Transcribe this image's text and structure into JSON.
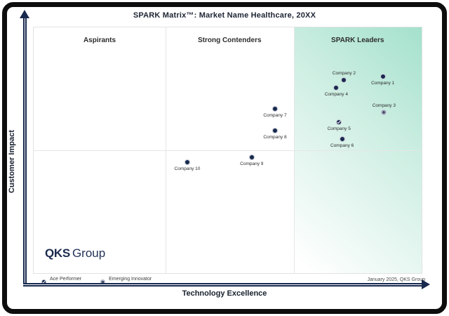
{
  "title": "SPARK Matrix™: Market Name Healthcare, 20XX",
  "x_axis_label": "Technology Excellence",
  "y_axis_label": "Customer Impact",
  "quadrant_labels": [
    "Aspirants",
    "Strong Contenders",
    "SPARK Leaders"
  ],
  "legend": {
    "ace_performer": "Ace Performer",
    "emerging_innovator": "Emerging Innovator"
  },
  "footer_note": "January 2025, QKS Group",
  "logo": {
    "bold_part": "QKS",
    "light_part": "Group"
  },
  "colors": {
    "navy": "#18294e",
    "marker_halo": "#ccd1d8",
    "leaders_gradient_start": "#a4e1cd",
    "grid_line": "#e6e6e6",
    "frame": "#0d0d0d"
  },
  "chart_data": {
    "type": "scatter",
    "title": "SPARK Matrix™: Market Name Healthcare, 20XX",
    "xlabel": "Technology Excellence",
    "ylabel": "Customer Impact",
    "xlim": [
      0,
      100
    ],
    "ylim": [
      0,
      100
    ],
    "axis_ticks_visible": false,
    "grid": "quadrant",
    "quadrant_dividers_x_pct": [
      34,
      67
    ],
    "midline_y_pct": 50,
    "legend_position": "bottom-left",
    "points": [
      {
        "label": "Company 1",
        "x": 90,
        "y": 80,
        "marker": "standard",
        "label_position": "below"
      },
      {
        "label": "Company 2",
        "x": 80,
        "y": 78.7,
        "marker": "standard",
        "label_position": "above"
      },
      {
        "label": "Company 3",
        "x": 90.3,
        "y": 65.3,
        "marker": "emerging-innovator",
        "label_position": "above"
      },
      {
        "label": "Company 4",
        "x": 78,
        "y": 75.3,
        "marker": "standard",
        "label_position": "below"
      },
      {
        "label": "Company 5",
        "x": 78.7,
        "y": 61.4,
        "marker": "ace-performer",
        "label_position": "below"
      },
      {
        "label": "Company 6",
        "x": 79.5,
        "y": 54.5,
        "marker": "standard",
        "label_position": "below"
      },
      {
        "label": "Company 7",
        "x": 62.2,
        "y": 66.8,
        "marker": "standard",
        "label_position": "below"
      },
      {
        "label": "Company 8",
        "x": 62.2,
        "y": 58,
        "marker": "standard",
        "label_position": "below"
      },
      {
        "label": "Company 9",
        "x": 56.2,
        "y": 47.2,
        "marker": "standard",
        "label_position": "below"
      },
      {
        "label": "Company 10",
        "x": 39.6,
        "y": 45.2,
        "marker": "standard",
        "label_position": "below"
      }
    ]
  }
}
